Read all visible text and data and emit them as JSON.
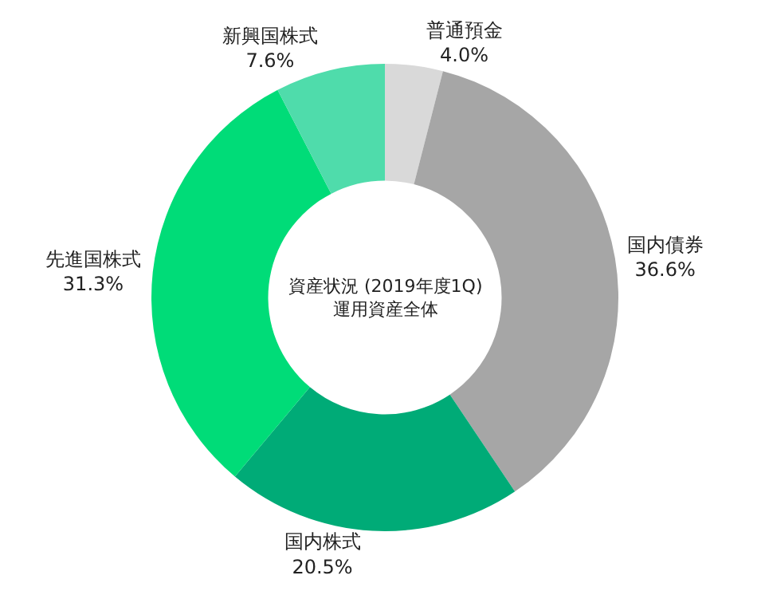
{
  "chart_data": {
    "type": "donut",
    "title": "資産状況 (2019年度1Q)",
    "subtitle": "運用資産全体",
    "categories": [
      "普通預金",
      "国内債券",
      "国内株式",
      "先進国株式",
      "新興国株式"
    ],
    "values": [
      4.0,
      36.6,
      20.5,
      31.3,
      7.6
    ],
    "value_labels": [
      "4.0%",
      "36.6%",
      "20.5%",
      "31.3%",
      "7.6%"
    ],
    "colors": [
      "#d9d9d9",
      "#a6a6a6",
      "#00ab77",
      "#00dc78",
      "#4fdcab"
    ],
    "legend": false
  }
}
